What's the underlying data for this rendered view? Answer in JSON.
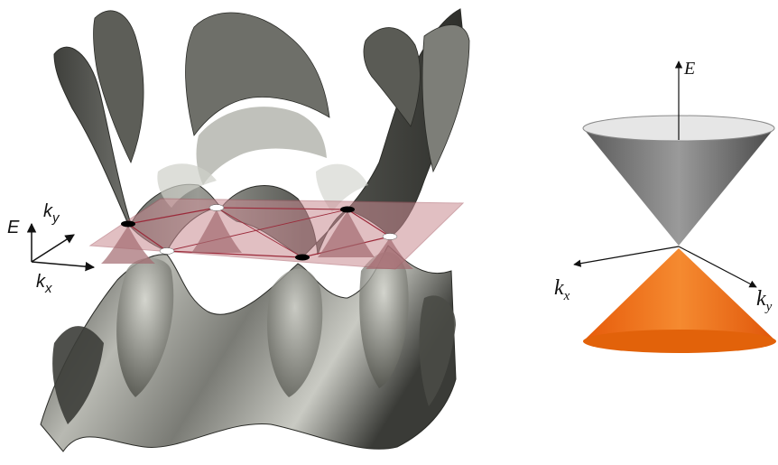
{
  "left_panel": {
    "axes": {
      "e_label": "E",
      "ky_label_base": "k",
      "ky_label_sub": "y",
      "kx_label_base": "k",
      "kx_label_sub": "x"
    },
    "colors": {
      "surface_dark": "#4a4b46",
      "surface_mid": "#8c8d86",
      "surface_light": "#d4d5cf",
      "fermi_plane": "#c98b92",
      "fermi_line": "#9b2a3a",
      "dirac_point_black": "#000000",
      "dirac_point_white": "#ffffff"
    },
    "dirac_points": [
      {
        "name": "point-1",
        "color": "black"
      },
      {
        "name": "point-2",
        "color": "white"
      },
      {
        "name": "point-3",
        "color": "black"
      },
      {
        "name": "point-4",
        "color": "white"
      },
      {
        "name": "point-5",
        "color": "black"
      },
      {
        "name": "point-6",
        "color": "white"
      }
    ]
  },
  "right_panel": {
    "axes": {
      "e_label": "E",
      "kx_label_base": "k",
      "kx_label_sub": "x",
      "ky_label_base": "k",
      "ky_label_sub": "y"
    },
    "colors": {
      "upper_cone": "#7a7a7a",
      "upper_cone_top": "#e6e6e6",
      "lower_cone": "#f07a1c",
      "lower_cone_bottom": "#e2620a"
    }
  }
}
